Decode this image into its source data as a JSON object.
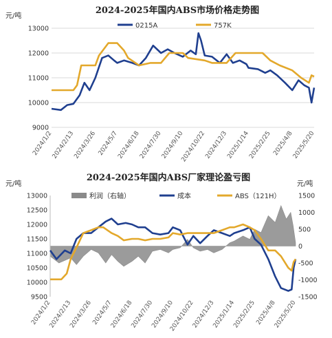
{
  "chart_data": [
    {
      "type": "line",
      "title": "2024-2025年国内ABS市场价格走势图",
      "ylabel": "元/吨",
      "ylim": [
        9000,
        13000
      ],
      "yticks": [
        9000,
        10000,
        11000,
        12000,
        13000
      ],
      "xticks": [
        "2024/1/2",
        "2024/2/13",
        "2024/3/26",
        "2024/5/7",
        "2024/6/18",
        "2024/7/30",
        "2024/9/10",
        "2024/10/22",
        "2024/12/3",
        "2025/1/14",
        "2025/2/25",
        "2025/4/8",
        "2025/5/20"
      ],
      "x_range": [
        "2024/1/2",
        "2025/5/20"
      ],
      "legend_position": "top",
      "series": [
        {
          "name": "0215A",
          "color": "#1f3f8f",
          "points": [
            [
              "2024/1/2",
              9750
            ],
            [
              "2024/1/20",
              9700
            ],
            [
              "2024/2/1",
              9900
            ],
            [
              "2024/2/13",
              9950
            ],
            [
              "2024/2/25",
              10300
            ],
            [
              "2024/3/5",
              10800
            ],
            [
              "2024/3/15",
              10500
            ],
            [
              "2024/3/26",
              11000
            ],
            [
              "2024/4/8",
              11800
            ],
            [
              "2024/4/20",
              11900
            ],
            [
              "2024/5/1",
              11700
            ],
            [
              "2024/5/7",
              11600
            ],
            [
              "2024/5/20",
              11700
            ],
            [
              "2024/6/5",
              11600
            ],
            [
              "2024/6/18",
              11500
            ],
            [
              "2024/7/1",
              11800
            ],
            [
              "2024/7/15",
              12300
            ],
            [
              "2024/7/30",
              12000
            ],
            [
              "2024/8/12",
              12150
            ],
            [
              "2024/8/25",
              12000
            ],
            [
              "2024/9/10",
              11850
            ],
            [
              "2024/9/25",
              12100
            ],
            [
              "2024/10/5",
              11950
            ],
            [
              "2024/10/10",
              12800
            ],
            [
              "2024/10/15",
              12500
            ],
            [
              "2024/10/22",
              11900
            ],
            [
              "2024/11/5",
              11850
            ],
            [
              "2024/11/20",
              11600
            ],
            [
              "2024/12/3",
              11950
            ],
            [
              "2024/12/15",
              11600
            ],
            [
              "2024/12/28",
              11700
            ],
            [
              "2025/1/10",
              11550
            ],
            [
              "2025/1/14",
              11400
            ],
            [
              "2025/2/1",
              11350
            ],
            [
              "2025/2/15",
              11200
            ],
            [
              "2025/2/25",
              11300
            ],
            [
              "2025/3/10",
              11100
            ],
            [
              "2025/3/25",
              10800
            ],
            [
              "2025/4/8",
              10500
            ],
            [
              "2025/4/20",
              10900
            ],
            [
              "2025/5/1",
              10700
            ],
            [
              "2025/5/10",
              10600
            ],
            [
              "2025/5/15",
              10000
            ],
            [
              "2025/5/20",
              10600
            ]
          ]
        },
        {
          "name": "757K",
          "color": "#e3a82b",
          "points": [
            [
              "2024/1/2",
              10500
            ],
            [
              "2024/2/13",
              10500
            ],
            [
              "2024/2/20",
              10700
            ],
            [
              "2024/2/28",
              11500
            ],
            [
              "2024/3/26",
              11500
            ],
            [
              "2024/4/2",
              11900
            ],
            [
              "2024/4/20",
              12400
            ],
            [
              "2024/5/7",
              12400
            ],
            [
              "2024/5/20",
              12100
            ],
            [
              "2024/5/28",
              11800
            ],
            [
              "2024/6/18",
              11500
            ],
            [
              "2024/7/10",
              11600
            ],
            [
              "2024/7/30",
              11600
            ],
            [
              "2024/8/15",
              12000
            ],
            [
              "2024/9/10",
              12000
            ],
            [
              "2024/9/20",
              11800
            ],
            [
              "2024/10/22",
              11700
            ],
            [
              "2024/11/5",
              11600
            ],
            [
              "2024/12/3",
              11600
            ],
            [
              "2024/12/20",
              12000
            ],
            [
              "2025/1/14",
              12000
            ],
            [
              "2025/2/10",
              12000
            ],
            [
              "2025/2/25",
              11700
            ],
            [
              "2025/3/15",
              11500
            ],
            [
              "2025/4/8",
              11300
            ],
            [
              "2025/4/25",
              11000
            ],
            [
              "2025/5/10",
              10800
            ],
            [
              "2025/5/15",
              11100
            ],
            [
              "2025/5/20",
              11050
            ]
          ]
        }
      ]
    },
    {
      "type": "line",
      "title": "2024-2025年国内ABS厂家理论盈亏图",
      "ylabel": "元/吨",
      "y2label": "元/吨",
      "ylim": [
        9500,
        13000
      ],
      "yticks": [
        9500,
        10000,
        10500,
        11000,
        11500,
        12000,
        12500,
        13000
      ],
      "y2lim": [
        -1500,
        1500
      ],
      "y2ticks": [
        -1500,
        -1000,
        -500,
        0,
        500,
        1000,
        1500
      ],
      "xticks": [
        "2024/1/2",
        "2024/2/13",
        "2024/3/26",
        "2024/5/7",
        "2024/6/18",
        "2024/7/30",
        "2024/9/10",
        "2024/10/22",
        "2024/12/3",
        "2025/1/14",
        "2025/2/25",
        "2025/4/8",
        "2025/5/20"
      ],
      "x_range": [
        "2024/1/2",
        "2025/5/20"
      ],
      "legend_position": "top",
      "series": [
        {
          "name": "利润（右轴）",
          "render": "area",
          "axis": "right",
          "color": "#8a8a8a",
          "points": [
            [
              "2024/1/2",
              -300
            ],
            [
              "2024/1/20",
              -500
            ],
            [
              "2024/2/5",
              -400
            ],
            [
              "2024/2/13",
              -350
            ],
            [
              "2024/2/25",
              -550
            ],
            [
              "2024/3/10",
              -300
            ],
            [
              "2024/3/26",
              -100
            ],
            [
              "2024/4/10",
              -200
            ],
            [
              "2024/4/25",
              -500
            ],
            [
              "2024/5/7",
              -250
            ],
            [
              "2024/5/20",
              -450
            ],
            [
              "2024/6/1",
              -600
            ],
            [
              "2024/6/18",
              -450
            ],
            [
              "2024/7/1",
              -300
            ],
            [
              "2024/7/15",
              -500
            ],
            [
              "2024/7/30",
              -150
            ],
            [
              "2024/8/15",
              -100
            ],
            [
              "2024/9/1",
              -200
            ],
            [
              "2024/9/10",
              -100
            ],
            [
              "2024/9/25",
              -50
            ],
            [
              "2024/10/10",
              200
            ],
            [
              "2024/10/22",
              -50
            ],
            [
              "2024/11/5",
              -150
            ],
            [
              "2024/11/20",
              -100
            ],
            [
              "2024/12/3",
              -200
            ],
            [
              "2024/12/20",
              -100
            ],
            [
              "2025/1/5",
              100
            ],
            [
              "2025/1/14",
              150
            ],
            [
              "2025/2/1",
              300
            ],
            [
              "2025/2/15",
              200
            ],
            [
              "2025/2/25",
              500
            ],
            [
              "2025/3/10",
              400
            ],
            [
              "2025/3/25",
              900
            ],
            [
              "2025/4/8",
              700
            ],
            [
              "2025/4/20",
              1200
            ],
            [
              "2025/5/1",
              800
            ],
            [
              "2025/5/10",
              1000
            ],
            [
              "2025/5/15",
              600
            ],
            [
              "2025/5/20",
              100
            ]
          ]
        },
        {
          "name": "成本",
          "render": "line",
          "axis": "left",
          "color": "#1f3f8f",
          "points": [
            [
              "2024/1/2",
              11100
            ],
            [
              "2024/1/15",
              10800
            ],
            [
              "2024/2/1",
              11100
            ],
            [
              "2024/2/13",
              11000
            ],
            [
              "2024/2/25",
              11500
            ],
            [
              "2024/3/10",
              11700
            ],
            [
              "2024/3/26",
              11700
            ],
            [
              "2024/4/10",
              11900
            ],
            [
              "2024/4/25",
              12100
            ],
            [
              "2024/5/7",
              12200
            ],
            [
              "2024/5/20",
              12000
            ],
            [
              "2024/6/5",
              12050
            ],
            [
              "2024/6/18",
              12000
            ],
            [
              "2024/7/1",
              11900
            ],
            [
              "2024/7/15",
              11900
            ],
            [
              "2024/7/30",
              11700
            ],
            [
              "2024/8/15",
              11650
            ],
            [
              "2024/9/1",
              11700
            ],
            [
              "2024/9/10",
              11900
            ],
            [
              "2024/9/25",
              11800
            ],
            [
              "2024/10/10",
              11300
            ],
            [
              "2024/10/22",
              11600
            ],
            [
              "2024/11/5",
              11350
            ],
            [
              "2024/11/20",
              11600
            ],
            [
              "2024/12/3",
              11800
            ],
            [
              "2024/12/20",
              11700
            ],
            [
              "2025/1/5",
              11600
            ],
            [
              "2025/1/14",
              11700
            ],
            [
              "2025/2/1",
              11800
            ],
            [
              "2025/2/15",
              11900
            ],
            [
              "2025/2/25",
              11500
            ],
            [
              "2025/3/10",
              11300
            ],
            [
              "2025/3/25",
              10800
            ],
            [
              "2025/4/8",
              10200
            ],
            [
              "2025/4/20",
              9800
            ],
            [
              "2025/5/5",
              9700
            ],
            [
              "2025/5/12",
              9750
            ],
            [
              "2025/5/16",
              10500
            ],
            [
              "2025/5/20",
              10800
            ]
          ]
        },
        {
          "name": "ABS（121H）",
          "render": "line",
          "axis": "left",
          "color": "#e3a82b",
          "points": [
            [
              "2024/1/2",
              10100
            ],
            [
              "2024/1/25",
              10100
            ],
            [
              "2024/2/5",
              10300
            ],
            [
              "2024/2/13",
              10800
            ],
            [
              "2024/2/25",
              11200
            ],
            [
              "2024/3/10",
              11700
            ],
            [
              "2024/3/26",
              11800
            ],
            [
              "2024/4/10",
              11900
            ],
            [
              "2024/4/20",
              11900
            ],
            [
              "2024/5/7",
              11700
            ],
            [
              "2024/5/20",
              11600
            ],
            [
              "2024/6/1",
              11450
            ],
            [
              "2024/6/18",
              11500
            ],
            [
              "2024/7/1",
              11500
            ],
            [
              "2024/7/15",
              11450
            ],
            [
              "2024/7/30",
              11500
            ],
            [
              "2024/8/15",
              11500
            ],
            [
              "2024/9/1",
              11550
            ],
            [
              "2024/9/10",
              11700
            ],
            [
              "2024/9/25",
              11650
            ],
            [
              "2024/10/10",
              11700
            ],
            [
              "2024/10/22",
              11700
            ],
            [
              "2024/11/5",
              11700
            ],
            [
              "2024/11/20",
              11700
            ],
            [
              "2024/12/3",
              11700
            ],
            [
              "2024/12/20",
              11800
            ],
            [
              "2025/1/5",
              11900
            ],
            [
              "2025/1/14",
              11900
            ],
            [
              "2025/2/1",
              12000
            ],
            [
              "2025/2/15",
              11900
            ],
            [
              "2025/2/25",
              11800
            ],
            [
              "2025/3/10",
              11500
            ],
            [
              "2025/3/25",
              11100
            ],
            [
              "2025/4/8",
              11100
            ],
            [
              "2025/4/20",
              10900
            ],
            [
              "2025/5/5",
              10500
            ],
            [
              "2025/5/12",
              10400
            ],
            [
              "2025/5/16",
              10700
            ],
            [
              "2025/5/20",
              10800
            ]
          ]
        }
      ]
    }
  ]
}
